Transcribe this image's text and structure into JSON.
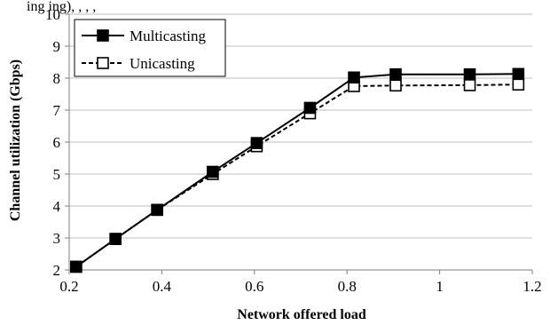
{
  "chart_data": {
    "type": "line",
    "title": "",
    "caption_fragment": "ing ing),   ,   ,   ,",
    "xlabel": "Network offered load",
    "ylabel": "Channel utilization (Gbps)",
    "xlim": [
      0.2,
      1.2
    ],
    "ylim": [
      2,
      10
    ],
    "xticks": [
      0.2,
      0.4,
      0.6,
      0.8,
      1,
      1.2
    ],
    "xtick_labels": [
      "0.2",
      "0.4",
      "0.6",
      "0.8",
      "1",
      "1.2"
    ],
    "yticks": [
      2,
      3,
      4,
      5,
      6,
      7,
      8,
      9,
      10
    ],
    "ytick_labels": [
      "2",
      "3",
      "4",
      "5",
      "6",
      "7",
      "8",
      "9",
      "10"
    ],
    "grid": "horizontal",
    "legend_position": "top-left",
    "series": [
      {
        "name": "Multicasting",
        "marker": "filled-square",
        "line": "solid",
        "color": "#000000",
        "x": [
          0.215,
          0.3,
          0.39,
          0.51,
          0.605,
          0.72,
          0.815,
          0.905,
          1.065,
          1.17
        ],
        "y": [
          2.1,
          2.97,
          3.88,
          5.07,
          5.97,
          7.07,
          8.02,
          8.12,
          8.12,
          8.13
        ]
      },
      {
        "name": "Unicasting",
        "marker": "hollow-square",
        "line": "dashed",
        "color": "#000000",
        "x": [
          0.215,
          0.3,
          0.39,
          0.51,
          0.605,
          0.72,
          0.815,
          0.905,
          1.065,
          1.17
        ],
        "y": [
          2.1,
          2.97,
          3.88,
          5.0,
          5.87,
          6.9,
          7.75,
          7.77,
          7.78,
          7.8
        ]
      }
    ]
  }
}
